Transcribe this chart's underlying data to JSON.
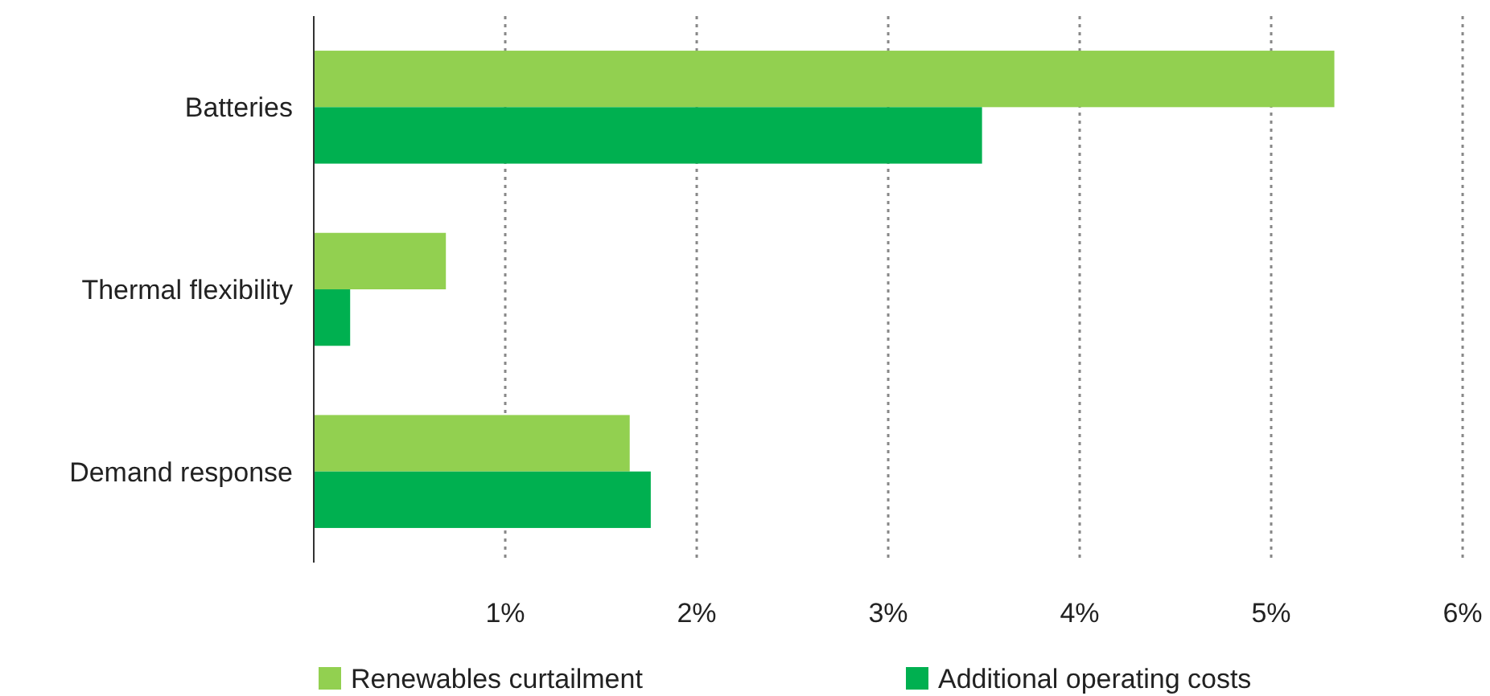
{
  "chart_data": {
    "type": "bar",
    "orientation": "horizontal",
    "categories": [
      "Batteries",
      "Thermal flexibility",
      "Demand response"
    ],
    "series": [
      {
        "name": "Renewables curtailment",
        "color": "#92d050",
        "values": [
          5.33,
          0.69,
          1.65
        ]
      },
      {
        "name": "Additional operating costs",
        "color": "#00b050",
        "values": [
          3.49,
          0.19,
          1.76
        ]
      }
    ],
    "xlim": [
      0,
      6
    ],
    "xticks": [
      {
        "value": 1,
        "label": "1%"
      },
      {
        "value": 2,
        "label": "2%"
      },
      {
        "value": 3,
        "label": "3%"
      },
      {
        "value": 4,
        "label": "4%"
      },
      {
        "value": 5,
        "label": "5%"
      },
      {
        "value": 6,
        "label": "6%"
      }
    ],
    "grid": "x",
    "legend": "bottom"
  }
}
